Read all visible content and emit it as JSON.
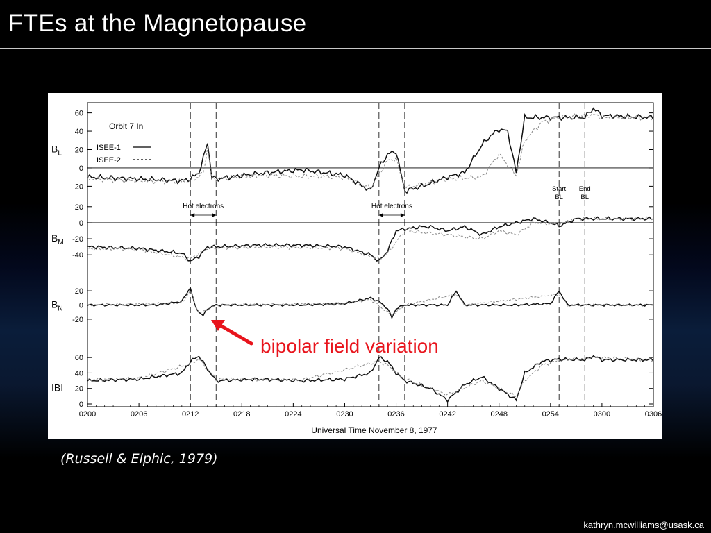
{
  "slide": {
    "title": "FTEs at the Magnetopause",
    "citation": "(Russell & Elphic, 1979)",
    "email": "kathryn.mcwilliams@usask.ca",
    "annotation": "bipolar field variation",
    "accent_color": "#e8141c"
  },
  "chart_data": {
    "type": "line",
    "orbit_label": "Orbit 7 In",
    "xlabel": "Universal   Time   November 8, 1977",
    "x_ticks": [
      "0200",
      "0206",
      "0212",
      "0218",
      "0224",
      "0230",
      "0236",
      "0242",
      "0248",
      "0254",
      "0300",
      "0306"
    ],
    "xlim_minutes": [
      0,
      66
    ],
    "legend": [
      {
        "name": "ISEE-1",
        "style": "solid"
      },
      {
        "name": "ISEE-2",
        "style": "dashed"
      }
    ],
    "event_labels": [
      {
        "text": "Hot  electrons",
        "start": "0212",
        "end": "0215"
      },
      {
        "text": "Hot   electrons",
        "start": "0234",
        "end": "0237"
      }
    ],
    "boundary_labels": [
      {
        "lines": [
          "Start",
          "BL"
        ],
        "time": "0255"
      },
      {
        "lines": [
          "End",
          "BL"
        ],
        "time": "0258"
      }
    ],
    "panels": [
      {
        "label": "B",
        "sub": "L",
        "ticks": [
          "60",
          "40",
          "20",
          "0",
          "-20"
        ],
        "ylim": [
          -25,
          65
        ],
        "series": [
          {
            "name": "ISEE-1",
            "points": [
              [
                0,
                -10
              ],
              [
                6,
                -12
              ],
              [
                11,
                -14
              ],
              [
                12,
                -12
              ],
              [
                13,
                -5
              ],
              [
                13.5,
                10
              ],
              [
                14,
                28
              ],
              [
                14.5,
                -10
              ],
              [
                15,
                -12
              ],
              [
                20,
                -6
              ],
              [
                25,
                -2
              ],
              [
                30,
                -8
              ],
              [
                33,
                -25
              ],
              [
                34,
                0
              ],
              [
                35,
                15
              ],
              [
                36,
                18
              ],
              [
                37,
                -25
              ],
              [
                39,
                -20
              ],
              [
                42,
                -10
              ],
              [
                44,
                -5
              ],
              [
                46,
                25
              ],
              [
                47,
                35
              ],
              [
                48,
                42
              ],
              [
                49,
                40
              ],
              [
                50,
                -5
              ],
              [
                51,
                55
              ],
              [
                53,
                55
              ],
              [
                55,
                55
              ],
              [
                58,
                55
              ],
              [
                59,
                65
              ],
              [
                60,
                57
              ],
              [
                66,
                55
              ]
            ]
          },
          {
            "name": "ISEE-2",
            "points": [
              [
                0,
                -12
              ],
              [
                6,
                -14
              ],
              [
                12,
                -15
              ],
              [
                13.5,
                -6
              ],
              [
                14,
                22
              ],
              [
                14.5,
                -12
              ],
              [
                20,
                -8
              ],
              [
                30,
                -10
              ],
              [
                33,
                -22
              ],
              [
                35,
                8
              ],
              [
                36,
                10
              ],
              [
                37,
                -22
              ],
              [
                42,
                -12
              ],
              [
                46,
                -10
              ],
              [
                48,
                15
              ],
              [
                50,
                -8
              ],
              [
                51,
                30
              ],
              [
                53,
                50
              ],
              [
                55,
                55
              ],
              [
                59,
                58
              ],
              [
                60,
                55
              ],
              [
                66,
                55
              ]
            ]
          }
        ]
      },
      {
        "label": "B",
        "sub": "M",
        "ticks": [
          "20",
          "0",
          "-20",
          "-40"
        ],
        "ylim": [
          -45,
          25
        ],
        "series": [
          {
            "name": "ISEE-1",
            "points": [
              [
                0,
                -30
              ],
              [
                6,
                -32
              ],
              [
                11,
                -38
              ],
              [
                12,
                -48
              ],
              [
                13,
                -42
              ],
              [
                14,
                -30
              ],
              [
                15,
                -30
              ],
              [
                20,
                -28
              ],
              [
                25,
                -28
              ],
              [
                30,
                -30
              ],
              [
                33,
                -40
              ],
              [
                34,
                -48
              ],
              [
                35,
                -35
              ],
              [
                36,
                -10
              ],
              [
                37,
                -8
              ],
              [
                39,
                -5
              ],
              [
                40,
                -5
              ],
              [
                42,
                -10
              ],
              [
                44,
                -5
              ],
              [
                46,
                -15
              ],
              [
                48,
                -5
              ],
              [
                50,
                0
              ],
              [
                52,
                5
              ],
              [
                54,
                0
              ],
              [
                55,
                -4
              ],
              [
                57,
                5
              ],
              [
                60,
                5
              ],
              [
                66,
                5
              ]
            ]
          },
          {
            "name": "ISEE-2",
            "points": [
              [
                0,
                -32
              ],
              [
                6,
                -33
              ],
              [
                12,
                -45
              ],
              [
                14,
                -32
              ],
              [
                20,
                -30
              ],
              [
                30,
                -32
              ],
              [
                34,
                -45
              ],
              [
                35,
                -38
              ],
              [
                37,
                -10
              ],
              [
                42,
                -15
              ],
              [
                46,
                -20
              ],
              [
                48,
                -10
              ],
              [
                50,
                -15
              ],
              [
                52,
                0
              ],
              [
                55,
                -2
              ],
              [
                57,
                5
              ],
              [
                66,
                5
              ]
            ]
          }
        ]
      },
      {
        "label": "B",
        "sub": "N",
        "ticks": [
          "20",
          "0",
          "-20"
        ],
        "ylim": [
          -25,
          25
        ],
        "series": [
          {
            "name": "ISEE-1",
            "points": [
              [
                0,
                0
              ],
              [
                8,
                0
              ],
              [
                11,
                5
              ],
              [
                12,
                25
              ],
              [
                12.5,
                0
              ],
              [
                13,
                -10
              ],
              [
                13.5,
                -15
              ],
              [
                14,
                -5
              ],
              [
                15,
                0
              ],
              [
                25,
                0
              ],
              [
                30,
                2
              ],
              [
                33,
                10
              ],
              [
                34,
                5
              ],
              [
                35,
                -5
              ],
              [
                35.5,
                -18
              ],
              [
                36,
                -5
              ],
              [
                37,
                0
              ],
              [
                42,
                0
              ],
              [
                43,
                20
              ],
              [
                44,
                0
              ],
              [
                50,
                0
              ],
              [
                54,
                2
              ],
              [
                55,
                20
              ],
              [
                56,
                0
              ],
              [
                66,
                0
              ]
            ]
          },
          {
            "name": "ISEE-2",
            "points": [
              [
                0,
                0
              ],
              [
                11,
                3
              ],
              [
                12,
                20
              ],
              [
                13,
                -12
              ],
              [
                15,
                0
              ],
              [
                30,
                2
              ],
              [
                33,
                8
              ],
              [
                35.5,
                -15
              ],
              [
                37,
                0
              ],
              [
                43,
                15
              ],
              [
                44,
                0
              ],
              [
                55,
                15
              ],
              [
                56,
                0
              ],
              [
                66,
                0
              ]
            ]
          }
        ]
      },
      {
        "label": "IBI",
        "sub": "",
        "ticks": [
          "60",
          "40",
          "20",
          "0"
        ],
        "ylim": [
          0,
          70
        ],
        "series": [
          {
            "name": "ISEE-1",
            "points": [
              [
                0,
                30
              ],
              [
                6,
                32
              ],
              [
                11,
                40
              ],
              [
                12,
                55
              ],
              [
                13,
                62
              ],
              [
                14,
                45
              ],
              [
                15,
                30
              ],
              [
                20,
                32
              ],
              [
                25,
                30
              ],
              [
                30,
                32
              ],
              [
                33,
                40
              ],
              [
                34,
                60
              ],
              [
                35,
                55
              ],
              [
                36,
                40
              ],
              [
                37,
                30
              ],
              [
                40,
                20
              ],
              [
                42,
                5
              ],
              [
                44,
                25
              ],
              [
                46,
                35
              ],
              [
                48,
                20
              ],
              [
                50,
                5
              ],
              [
                51,
                40
              ],
              [
                53,
                55
              ],
              [
                55,
                58
              ],
              [
                58,
                57
              ],
              [
                59,
                62
              ],
              [
                60,
                57
              ],
              [
                66,
                57
              ]
            ]
          },
          {
            "name": "ISEE-2",
            "points": [
              [
                0,
                31
              ],
              [
                6,
                33
              ],
              [
                12,
                52
              ],
              [
                13,
                58
              ],
              [
                15,
                32
              ],
              [
                25,
                31
              ],
              [
                34,
                55
              ],
              [
                35,
                50
              ],
              [
                37,
                32
              ],
              [
                42,
                12
              ],
              [
                46,
                30
              ],
              [
                50,
                10
              ],
              [
                51,
                30
              ],
              [
                53,
                50
              ],
              [
                55,
                56
              ],
              [
                59,
                60
              ],
              [
                66,
                57
              ]
            ]
          }
        ]
      }
    ]
  }
}
